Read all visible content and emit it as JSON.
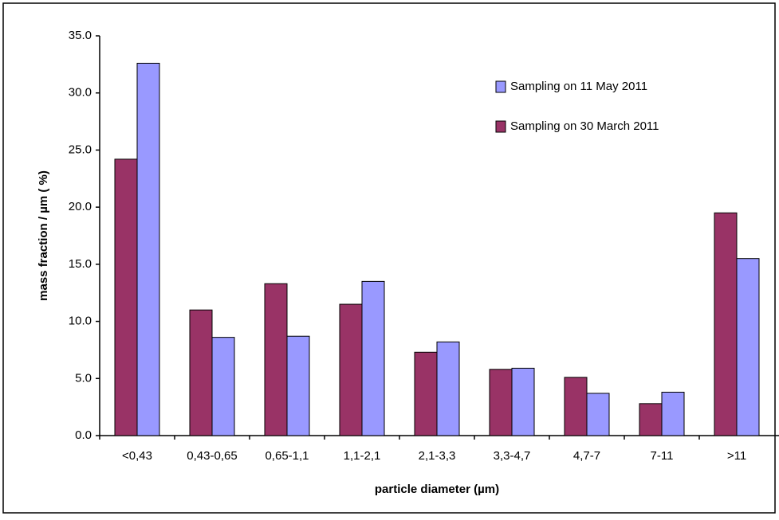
{
  "chart_data": {
    "type": "bar",
    "x_label": "particle diameter (µm)",
    "y_label": "mass fraction / µm ( %)",
    "categories": [
      "<0,43",
      "0,43-0,65",
      "0,65-1,1",
      "1,1-2,1",
      "2,1-3,3",
      "3,3-4,7",
      "4,7-7",
      "7-11",
      ">11"
    ],
    "series": [
      {
        "name": "Sampling on 30 March 2011",
        "color": "#993366",
        "values": [
          24.2,
          11.0,
          13.3,
          11.5,
          7.3,
          5.8,
          5.1,
          2.8,
          19.5
        ]
      },
      {
        "name": "Sampling on 11 May 2011",
        "color": "#9999ff",
        "values": [
          32.6,
          8.6,
          8.7,
          13.5,
          8.2,
          5.9,
          3.7,
          3.8,
          15.5
        ]
      }
    ],
    "ylim": [
      0,
      35
    ],
    "yticks": [
      {
        "value": 0,
        "label": "0.0"
      },
      {
        "value": 5,
        "label": "5.0"
      },
      {
        "value": 10,
        "label": "10.0"
      },
      {
        "value": 15,
        "label": "15.0"
      },
      {
        "value": 20,
        "label": "20.0"
      },
      {
        "value": 25,
        "label": "25.0"
      },
      {
        "value": 30,
        "label": "30.0"
      },
      {
        "value": 35,
        "label": "35.0"
      }
    ],
    "legend_order": [
      1,
      0
    ]
  }
}
